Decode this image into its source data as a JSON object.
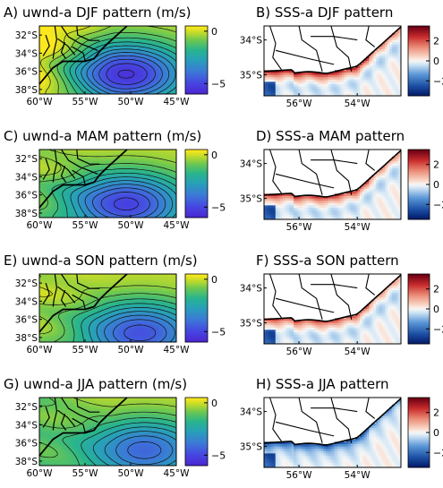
{
  "chart_data": [
    {
      "type": "heatmap",
      "title": "A) uwnd-a DJF pattern (m/s)",
      "lon_range": [
        -60,
        -45
      ],
      "lat_range": [
        -38.5,
        -31
      ],
      "x_ticks": [
        "60°W",
        "55°W",
        "50°W",
        "45°W"
      ],
      "y_ticks": [
        "32°S",
        "34°S",
        "36°S",
        "38°S"
      ],
      "colorbar": {
        "range": [
          -6,
          0.5
        ],
        "ticks": [
          "0",
          "−5"
        ],
        "colormap": "plasma-viridis"
      },
      "field": {
        "min_center": [
          -50.5,
          -36.3
        ],
        "min_value": -5.6,
        "west_value": 0.4,
        "contour_interval": 0.5
      },
      "contours": "black"
    },
    {
      "type": "heatmap",
      "title": "B) SSS-a DJF pattern",
      "lon_range": [
        -57.2,
        -52.5
      ],
      "lat_range": [
        -35.6,
        -33.6
      ],
      "x_ticks": [
        "56°W",
        "54°W"
      ],
      "y_ticks": [
        "34°S",
        "35°S"
      ],
      "colorbar": {
        "range": [
          -3.5,
          3.5
        ],
        "ticks": [
          "2",
          "0",
          "−2"
        ],
        "colormap": "RdBu_r"
      },
      "band": {
        "sign": "positive",
        "strength": 0.95
      }
    },
    {
      "type": "heatmap",
      "title": "C) uwnd-a MAM pattern (m/s)",
      "lon_range": [
        -60,
        -45
      ],
      "lat_range": [
        -38.5,
        -31
      ],
      "x_ticks": [
        "60°W",
        "55°W",
        "50°W",
        "45°W"
      ],
      "y_ticks": [
        "32°S",
        "34°S",
        "36°S",
        "38°S"
      ],
      "colorbar": {
        "range": [
          -6,
          0.5
        ],
        "ticks": [
          "0",
          "−5"
        ],
        "colormap": "plasma-viridis"
      },
      "field": {
        "min_center": [
          -50.5,
          -37.0
        ],
        "min_value": -5.2,
        "west_value": -0.6,
        "contour_interval": 0.5
      },
      "contours": "black"
    },
    {
      "type": "heatmap",
      "title": "D) SSS-a MAM pattern",
      "lon_range": [
        -57.2,
        -52.5
      ],
      "lat_range": [
        -35.6,
        -33.6
      ],
      "x_ticks": [
        "56°W",
        "54°W"
      ],
      "y_ticks": [
        "34°S",
        "35°S"
      ],
      "colorbar": {
        "range": [
          -3.5,
          3.5
        ],
        "ticks": [
          "2",
          "0",
          "−2"
        ],
        "colormap": "RdBu_r"
      },
      "band": {
        "sign": "positive",
        "strength": 0.8
      }
    },
    {
      "type": "heatmap",
      "title": "E) uwnd-a SON pattern (m/s)",
      "lon_range": [
        -60,
        -45
      ],
      "lat_range": [
        -38.5,
        -31
      ],
      "x_ticks": [
        "60°W",
        "55°W",
        "50°W",
        "45°W"
      ],
      "y_ticks": [
        "32°S",
        "34°S",
        "36°S",
        "38°S"
      ],
      "colorbar": {
        "range": [
          -6,
          0.5
        ],
        "ticks": [
          "0",
          "−5"
        ],
        "colormap": "plasma-viridis"
      },
      "field": {
        "min_center": [
          -49.0,
          -37.5
        ],
        "min_value": -4.8,
        "west_value": -0.5,
        "contour_interval": 0.5
      },
      "contours": "black"
    },
    {
      "type": "heatmap",
      "title": "F) SSS-a SON pattern",
      "lon_range": [
        -57.2,
        -52.5
      ],
      "lat_range": [
        -35.6,
        -33.6
      ],
      "x_ticks": [
        "56°W",
        "54°W"
      ],
      "y_ticks": [
        "34°S",
        "35°S"
      ],
      "colorbar": {
        "range": [
          -3.5,
          3.5
        ],
        "ticks": [
          "2",
          "0",
          "−2"
        ],
        "colormap": "RdBu_r"
      },
      "band": {
        "sign": "positive",
        "strength": 0.7
      }
    },
    {
      "type": "heatmap",
      "title": "G) uwnd-a JJA pattern (m/s)",
      "lon_range": [
        -60,
        -45
      ],
      "lat_range": [
        -38.5,
        -31
      ],
      "x_ticks": [
        "60°W",
        "55°W",
        "50°W",
        "45°W"
      ],
      "y_ticks": [
        "32°S",
        "34°S",
        "36°S",
        "38°S"
      ],
      "colorbar": {
        "range": [
          -6,
          0.5
        ],
        "ticks": [
          "0",
          "−5"
        ],
        "colormap": "plasma-viridis"
      },
      "field": {
        "min_center": [
          -48.5,
          -36.8
        ],
        "min_value": -4.3,
        "west_value": -1.0,
        "contour_interval": 0.5
      },
      "contours": "black"
    },
    {
      "type": "heatmap",
      "title": "H) SSS-a JJA pattern",
      "lon_range": [
        -57.2,
        -52.5
      ],
      "lat_range": [
        -35.6,
        -33.6
      ],
      "x_ticks": [
        "56°W",
        "54°W"
      ],
      "y_ticks": [
        "34°S",
        "35°S"
      ],
      "colorbar": {
        "range": [
          -3.5,
          3.5
        ],
        "ticks": [
          "2",
          "0",
          "−2"
        ],
        "colormap": "RdBu_r"
      },
      "band": {
        "sign": "negative",
        "strength": 0.85
      }
    }
  ]
}
